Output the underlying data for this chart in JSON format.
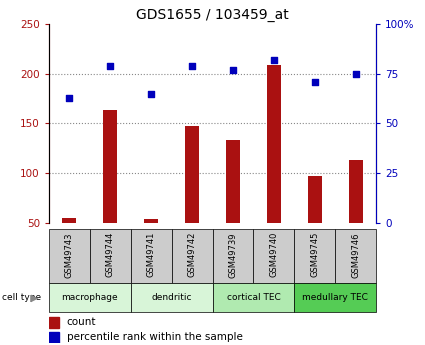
{
  "title": "GDS1655 / 103459_at",
  "samples": [
    "GSM49743",
    "GSM49744",
    "GSM49741",
    "GSM49742",
    "GSM49739",
    "GSM49740",
    "GSM49745",
    "GSM49746"
  ],
  "counts": [
    55,
    163,
    54,
    147,
    133,
    209,
    97,
    113
  ],
  "percentiles": [
    63,
    79,
    65,
    79,
    77,
    82,
    71,
    75
  ],
  "cell_type_labels": [
    "macrophage",
    "dendritic",
    "cortical TEC",
    "medullary TEC"
  ],
  "cell_type_colors": [
    "#d8f5d8",
    "#d8f5d8",
    "#b0eab0",
    "#55cc55"
  ],
  "cell_type_ranges": [
    [
      0,
      2
    ],
    [
      2,
      4
    ],
    [
      4,
      6
    ],
    [
      6,
      8
    ]
  ],
  "bar_color": "#aa1111",
  "dot_color": "#0000bb",
  "ylim_left": [
    50,
    250
  ],
  "ylim_right": [
    0,
    100
  ],
  "yticks_left": [
    50,
    100,
    150,
    200,
    250
  ],
  "yticks_right": [
    0,
    25,
    50,
    75,
    100
  ],
  "ytick_labels_right": [
    "0",
    "25",
    "50",
    "75",
    "100%"
  ],
  "grid_vals": [
    100,
    150,
    200
  ],
  "grid_color": "#888888",
  "title_fontsize": 10,
  "sample_row_color": "#cccccc",
  "background_color": "#ffffff"
}
